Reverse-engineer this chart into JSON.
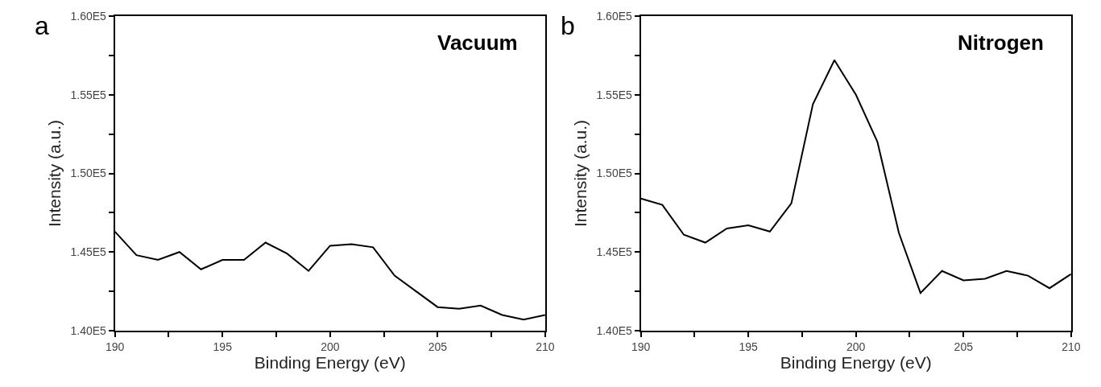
{
  "chart_data": [
    {
      "type": "line",
      "title": "a",
      "annotations": [
        "Vacuum"
      ],
      "xlabel": "Binding Energy (eV)",
      "ylabel": "Intensity (a.u.)",
      "x": [
        190,
        191,
        192,
        193,
        194,
        195,
        196,
        197,
        198,
        199,
        200,
        201,
        202,
        203,
        204,
        205,
        206,
        207,
        208,
        209,
        210
      ],
      "series": [
        {
          "color": "#000000",
          "values": [
            146300,
            144800,
            144500,
            145000,
            143900,
            144500,
            144500,
            145600,
            144900,
            143800,
            145400,
            145500,
            145300,
            143500,
            142500,
            141500,
            141400,
            141600,
            141000,
            140700,
            141000
          ]
        }
      ],
      "xlim": [
        190,
        210
      ],
      "xticks": [
        190,
        {
          "value": 192.5,
          "label": null
        },
        195,
        {
          "value": 197.5,
          "label": null
        },
        200,
        {
          "value": 202.5,
          "label": null
        },
        205,
        {
          "value": 207.5,
          "label": null
        },
        210
      ],
      "ylim": [
        140000,
        160000
      ],
      "yticks": [
        {
          "value": 140000,
          "label": "1.40E5"
        },
        {
          "value": 142500,
          "label": null
        },
        {
          "value": 145000,
          "label": "1.45E5"
        },
        {
          "value": 147500,
          "label": null
        },
        {
          "value": 150000,
          "label": "1.50E5"
        },
        {
          "value": 152500,
          "label": null
        },
        {
          "value": 155000,
          "label": "1.55E5"
        },
        {
          "value": 157500,
          "label": null
        },
        {
          "value": 160000,
          "label": "1.60E5"
        }
      ],
      "line_style": "solid"
    },
    {
      "type": "line",
      "title": "b",
      "annotations": [
        "Nitrogen"
      ],
      "xlabel": "Binding Energy (eV)",
      "ylabel": "Intensity (a.u.)",
      "x": [
        190,
        191,
        192,
        193,
        194,
        195,
        196,
        197,
        198,
        199,
        200,
        201,
        202,
        203,
        204,
        205,
        206,
        207,
        208,
        209,
        210
      ],
      "series": [
        {
          "color": "#000000",
          "values": [
            148400,
            148000,
            146100,
            145600,
            146500,
            146700,
            146300,
            148100,
            154400,
            157200,
            155000,
            152000,
            146200,
            142400,
            143800,
            143200,
            143300,
            143800,
            143500,
            142700,
            143600
          ]
        }
      ],
      "xlim": [
        190,
        210
      ],
      "xticks": [
        190,
        {
          "value": 192.5,
          "label": null
        },
        195,
        {
          "value": 197.5,
          "label": null
        },
        200,
        {
          "value": 202.5,
          "label": null
        },
        205,
        {
          "value": 207.5,
          "label": null
        },
        210
      ],
      "ylim": [
        140000,
        160000
      ],
      "yticks": [
        {
          "value": 140000,
          "label": "1.40E5"
        },
        {
          "value": 142500,
          "label": null
        },
        {
          "value": 145000,
          "label": "1.45E5"
        },
        {
          "value": 147500,
          "label": null
        },
        {
          "value": 150000,
          "label": "1.50E5"
        },
        {
          "value": 152500,
          "label": null
        },
        {
          "value": 155000,
          "label": "1.55E5"
        },
        {
          "value": 157500,
          "label": null
        },
        {
          "value": 160000,
          "label": "1.60E5"
        }
      ],
      "line_style": "solid"
    }
  ]
}
